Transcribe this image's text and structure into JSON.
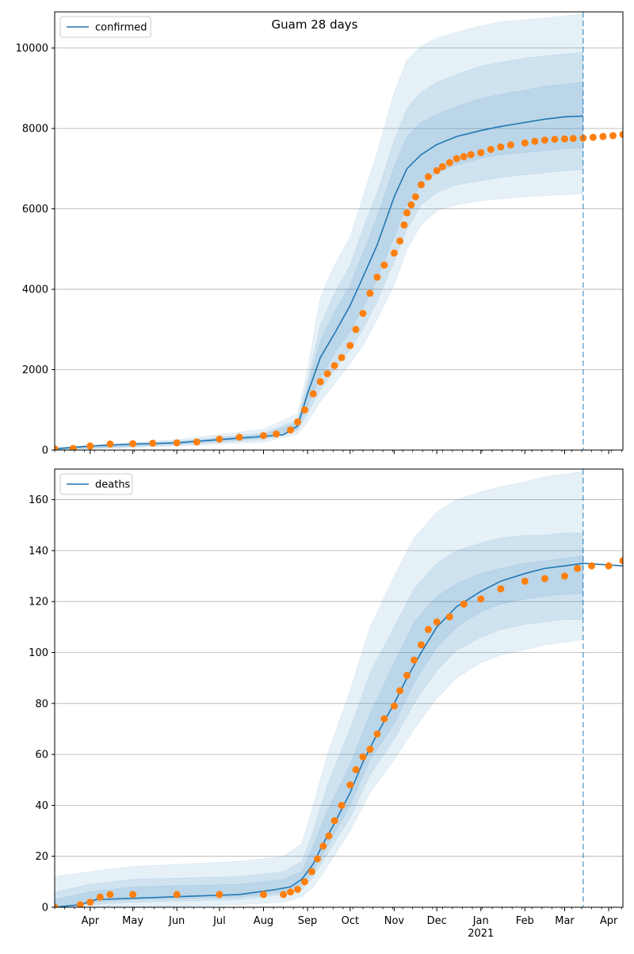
{
  "figure_title": "Guam 28 days",
  "x_ticks": {
    "month_labels": [
      "Apr",
      "May",
      "Jun",
      "Jul",
      "Aug",
      "Sep",
      "Oct",
      "Nov",
      "Dec",
      "Jan",
      "Feb",
      "Mar",
      "Apr"
    ],
    "month_dates": [
      "2020-04-01",
      "2020-05-01",
      "2020-06-01",
      "2020-07-01",
      "2020-08-01",
      "2020-09-01",
      "2020-10-01",
      "2020-11-01",
      "2020-12-01",
      "2021-01-01",
      "2021-02-01",
      "2021-03-01",
      "2021-04-01"
    ],
    "year_label": "2021"
  },
  "colors": {
    "model_line": "#1f77b4",
    "observed_points": "#ff7f0e",
    "band": "#1f77b4",
    "forecast_marker": "#1f77b4",
    "grid": "#b0b0b0"
  },
  "chart_data": [
    {
      "type": "line",
      "legend": [
        "confirmed"
      ],
      "legend_position": "top-left",
      "xlim": [
        "2020-03-07",
        "2021-04-11"
      ],
      "ylim": [
        0,
        10900
      ],
      "y_ticks": [
        0,
        2000,
        4000,
        6000,
        8000,
        10000
      ],
      "grid": "horizontal",
      "forecast_start": "2021-03-14",
      "series": [
        {
          "name": "confirmed",
          "kind": "model_median",
          "x": [
            "2020-03-07",
            "2020-04-01",
            "2020-05-01",
            "2020-06-01",
            "2020-07-01",
            "2020-08-01",
            "2020-08-15",
            "2020-08-25",
            "2020-09-01",
            "2020-09-10",
            "2020-09-20",
            "2020-10-01",
            "2020-10-10",
            "2020-10-20",
            "2020-11-01",
            "2020-11-10",
            "2020-11-20",
            "2020-12-01",
            "2020-12-15",
            "2021-01-01",
            "2021-01-15",
            "2021-02-01",
            "2021-02-15",
            "2021-03-01",
            "2021-03-14"
          ],
          "y": [
            30,
            100,
            150,
            180,
            260,
            340,
            380,
            600,
            1400,
            2300,
            2900,
            3600,
            4300,
            5100,
            6300,
            7000,
            7350,
            7600,
            7800,
            7950,
            8050,
            8150,
            8230,
            8290,
            8310
          ]
        },
        {
          "name": "",
          "kind": "observed",
          "x": [
            "2020-03-07",
            "2020-03-20",
            "2020-04-01",
            "2020-04-15",
            "2020-05-01",
            "2020-05-15",
            "2020-06-01",
            "2020-06-15",
            "2020-07-01",
            "2020-07-15",
            "2020-08-01",
            "2020-08-10",
            "2020-08-20",
            "2020-08-25",
            "2020-08-30",
            "2020-09-05",
            "2020-09-10",
            "2020-09-15",
            "2020-09-20",
            "2020-09-25",
            "2020-10-01",
            "2020-10-05",
            "2020-10-10",
            "2020-10-15",
            "2020-10-20",
            "2020-10-25",
            "2020-11-01",
            "2020-11-05",
            "2020-11-08",
            "2020-11-10",
            "2020-11-13",
            "2020-11-16",
            "2020-11-20",
            "2020-11-25",
            "2020-12-01",
            "2020-12-05",
            "2020-12-10",
            "2020-12-15",
            "2020-12-20",
            "2020-12-25",
            "2021-01-01",
            "2021-01-08",
            "2021-01-15",
            "2021-01-22",
            "2021-02-01",
            "2021-02-08",
            "2021-02-15",
            "2021-02-22",
            "2021-03-01",
            "2021-03-07",
            "2021-03-14",
            "2021-03-21",
            "2021-03-28",
            "2021-04-04",
            "2021-04-11"
          ],
          "y": [
            30,
            40,
            100,
            150,
            160,
            170,
            180,
            200,
            270,
            320,
            360,
            400,
            500,
            700,
            1000,
            1400,
            1700,
            1900,
            2100,
            2300,
            2600,
            3000,
            3400,
            3900,
            4300,
            4600,
            4900,
            5200,
            5600,
            5900,
            6100,
            6300,
            6600,
            6800,
            6950,
            7050,
            7150,
            7250,
            7300,
            7350,
            7400,
            7480,
            7540,
            7590,
            7640,
            7680,
            7710,
            7730,
            7740,
            7750,
            7760,
            7780,
            7800,
            7820,
            7850
          ]
        }
      ],
      "bands": [
        {
          "name": "",
          "x": [
            "2020-03-07",
            "2020-06-01",
            "2020-08-01",
            "2020-08-25",
            "2020-09-01",
            "2020-09-10",
            "2020-09-20",
            "2020-10-01",
            "2020-10-10",
            "2020-10-20",
            "2020-11-01",
            "2020-11-10",
            "2020-11-20",
            "2020-12-01",
            "2020-12-15",
            "2021-01-01",
            "2021-01-15",
            "2021-02-01",
            "2021-02-15",
            "2021-03-01",
            "2021-03-14"
          ],
          "lower": [
            0,
            100,
            200,
            400,
            700,
            1200,
            1650,
            2150,
            2600,
            3250,
            4100,
            5000,
            5600,
            5950,
            6100,
            6200,
            6250,
            6300,
            6330,
            6360,
            6370
          ],
          "upper": [
            60,
            260,
            520,
            900,
            2000,
            3800,
            4600,
            5300,
            6300,
            7400,
            8900,
            9700,
            10050,
            10250,
            10400,
            10550,
            10650,
            10700,
            10750,
            10800,
            10850
          ]
        },
        {
          "name": "",
          "x": [
            "2020-03-07",
            "2020-06-01",
            "2020-08-01",
            "2020-08-25",
            "2020-09-01",
            "2020-09-10",
            "2020-09-20",
            "2020-10-01",
            "2020-10-10",
            "2020-10-20",
            "2020-11-01",
            "2020-11-10",
            "2020-11-20",
            "2020-12-01",
            "2020-12-15",
            "2021-01-01",
            "2021-01-15",
            "2021-02-01",
            "2021-02-15",
            "2021-03-01",
            "2021-03-14"
          ],
          "lower": [
            10,
            130,
            260,
            480,
            900,
            1500,
            2000,
            2500,
            3000,
            3700,
            4700,
            5500,
            6100,
            6400,
            6600,
            6700,
            6780,
            6850,
            6900,
            6950,
            6980
          ],
          "upper": [
            45,
            220,
            420,
            750,
            1700,
            3100,
            3900,
            4600,
            5500,
            6400,
            7700,
            8500,
            8900,
            9150,
            9350,
            9550,
            9650,
            9750,
            9800,
            9850,
            9900
          ]
        },
        {
          "name": "",
          "x": [
            "2020-03-07",
            "2020-06-01",
            "2020-08-01",
            "2020-08-25",
            "2020-09-01",
            "2020-09-10",
            "2020-09-20",
            "2020-10-01",
            "2020-10-10",
            "2020-10-20",
            "2020-11-01",
            "2020-11-10",
            "2020-11-20",
            "2020-12-01",
            "2020-12-15",
            "2021-01-01",
            "2021-01-15",
            "2021-02-01",
            "2021-02-15",
            "2021-03-01",
            "2021-03-14"
          ],
          "lower": [
            20,
            150,
            300,
            530,
            1100,
            1800,
            2400,
            2950,
            3550,
            4250,
            5300,
            6100,
            6600,
            6900,
            7100,
            7250,
            7350,
            7400,
            7450,
            7500,
            7520
          ],
          "upper": [
            40,
            200,
            380,
            680,
            1550,
            2700,
            3450,
            4100,
            4900,
            5800,
            7050,
            7800,
            8150,
            8350,
            8550,
            8750,
            8850,
            8950,
            9050,
            9100,
            9150
          ]
        }
      ]
    },
    {
      "type": "line",
      "legend": [
        "deaths"
      ],
      "legend_position": "top-left",
      "xlim": [
        "2020-03-07",
        "2021-04-11"
      ],
      "ylim": [
        0,
        172
      ],
      "y_ticks": [
        0,
        20,
        40,
        60,
        80,
        100,
        120,
        140,
        160
      ],
      "grid": "horizontal",
      "forecast_start": "2021-03-14",
      "series": [
        {
          "name": "deaths",
          "kind": "model_median",
          "x": [
            "2020-03-07",
            "2020-03-25",
            "2020-04-05",
            "2020-07-15",
            "2020-08-10",
            "2020-08-20",
            "2020-08-28",
            "2020-09-05",
            "2020-09-12",
            "2020-09-20",
            "2020-10-01",
            "2020-10-10",
            "2020-10-20",
            "2020-11-01",
            "2020-11-10",
            "2020-11-20",
            "2020-12-01",
            "2020-12-15",
            "2021-01-01",
            "2021-01-15",
            "2021-02-01",
            "2021-02-15",
            "2021-03-01",
            "2021-03-14",
            "2021-04-11"
          ],
          "y": [
            0,
            1,
            3,
            5,
            7,
            8,
            11,
            17,
            25,
            33,
            45,
            57,
            68,
            80,
            90,
            100,
            110,
            118,
            124,
            128,
            131,
            133,
            134,
            135,
            134
          ]
        },
        {
          "name": "",
          "kind": "observed",
          "x": [
            "2020-03-07",
            "2020-03-25",
            "2020-04-01",
            "2020-04-08",
            "2020-04-15",
            "2020-05-01",
            "2020-06-01",
            "2020-07-01",
            "2020-08-01",
            "2020-08-15",
            "2020-08-20",
            "2020-08-25",
            "2020-08-30",
            "2020-09-04",
            "2020-09-08",
            "2020-09-12",
            "2020-09-16",
            "2020-09-20",
            "2020-09-25",
            "2020-10-01",
            "2020-10-05",
            "2020-10-10",
            "2020-10-15",
            "2020-10-20",
            "2020-10-25",
            "2020-11-01",
            "2020-11-05",
            "2020-11-10",
            "2020-11-15",
            "2020-11-20",
            "2020-11-25",
            "2020-12-01",
            "2020-12-10",
            "2020-12-20",
            "2021-01-01",
            "2021-01-15",
            "2021-02-01",
            "2021-02-15",
            "2021-03-01",
            "2021-03-10",
            "2021-03-20",
            "2021-04-01",
            "2021-04-11"
          ],
          "y": [
            0,
            1,
            2,
            4,
            5,
            5,
            5,
            5,
            5,
            5,
            6,
            7,
            10,
            14,
            19,
            24,
            28,
            34,
            40,
            48,
            54,
            59,
            62,
            68,
            74,
            79,
            85,
            91,
            97,
            103,
            109,
            112,
            114,
            119,
            121,
            125,
            128,
            129,
            130,
            133,
            134,
            134,
            136
          ]
        }
      ],
      "bands": [
        {
          "name": "",
          "x": [
            "2020-03-07",
            "2020-04-01",
            "2020-05-01",
            "2020-07-15",
            "2020-08-15",
            "2020-08-28",
            "2020-09-05",
            "2020-09-15",
            "2020-10-01",
            "2020-10-15",
            "2020-11-01",
            "2020-11-15",
            "2020-12-01",
            "2020-12-15",
            "2021-01-01",
            "2021-01-15",
            "2021-02-01",
            "2021-02-15",
            "2021-03-01",
            "2021-03-14"
          ],
          "lower": [
            0,
            0,
            0,
            1,
            2,
            4,
            8,
            16,
            30,
            45,
            58,
            70,
            82,
            90,
            96,
            99,
            101,
            103,
            104,
            105
          ],
          "upper": [
            12,
            14,
            16,
            18,
            20,
            25,
            40,
            60,
            85,
            110,
            130,
            145,
            155,
            160,
            163,
            165,
            167,
            169,
            170,
            171
          ]
        },
        {
          "name": "",
          "x": [
            "2020-03-07",
            "2020-04-01",
            "2020-05-01",
            "2020-07-15",
            "2020-08-15",
            "2020-08-28",
            "2020-09-05",
            "2020-09-15",
            "2020-10-01",
            "2020-10-15",
            "2020-11-01",
            "2020-11-15",
            "2020-12-01",
            "2020-12-15",
            "2021-01-01",
            "2021-01-15",
            "2021-02-01",
            "2021-02-15",
            "2021-03-01",
            "2021-03-14"
          ],
          "lower": [
            0,
            1,
            2,
            3,
            5,
            7,
            12,
            21,
            35,
            52,
            66,
            80,
            93,
            101,
            106,
            109,
            111,
            112,
            113,
            113
          ],
          "upper": [
            6,
            9,
            11,
            12,
            14,
            18,
            30,
            48,
            70,
            92,
            110,
            125,
            135,
            140,
            143,
            145,
            146,
            146,
            147,
            147
          ]
        },
        {
          "name": "",
          "x": [
            "2020-03-07",
            "2020-04-01",
            "2020-05-01",
            "2020-07-15",
            "2020-08-15",
            "2020-08-28",
            "2020-09-05",
            "2020-09-15",
            "2020-10-01",
            "2020-10-15",
            "2020-11-01",
            "2020-11-15",
            "2020-12-01",
            "2020-12-15",
            "2021-01-01",
            "2021-01-15",
            "2021-02-01",
            "2021-02-15",
            "2021-03-01",
            "2021-03-14"
          ],
          "lower": [
            0,
            2,
            3,
            4,
            6,
            9,
            14,
            24,
            40,
            58,
            72,
            88,
            102,
            110,
            116,
            119,
            121,
            122,
            123,
            123
          ],
          "upper": [
            3,
            6,
            8,
            9,
            11,
            14,
            24,
            38,
            56,
            76,
            96,
            112,
            122,
            127,
            131,
            133,
            135,
            136,
            137,
            138
          ]
        }
      ]
    }
  ]
}
